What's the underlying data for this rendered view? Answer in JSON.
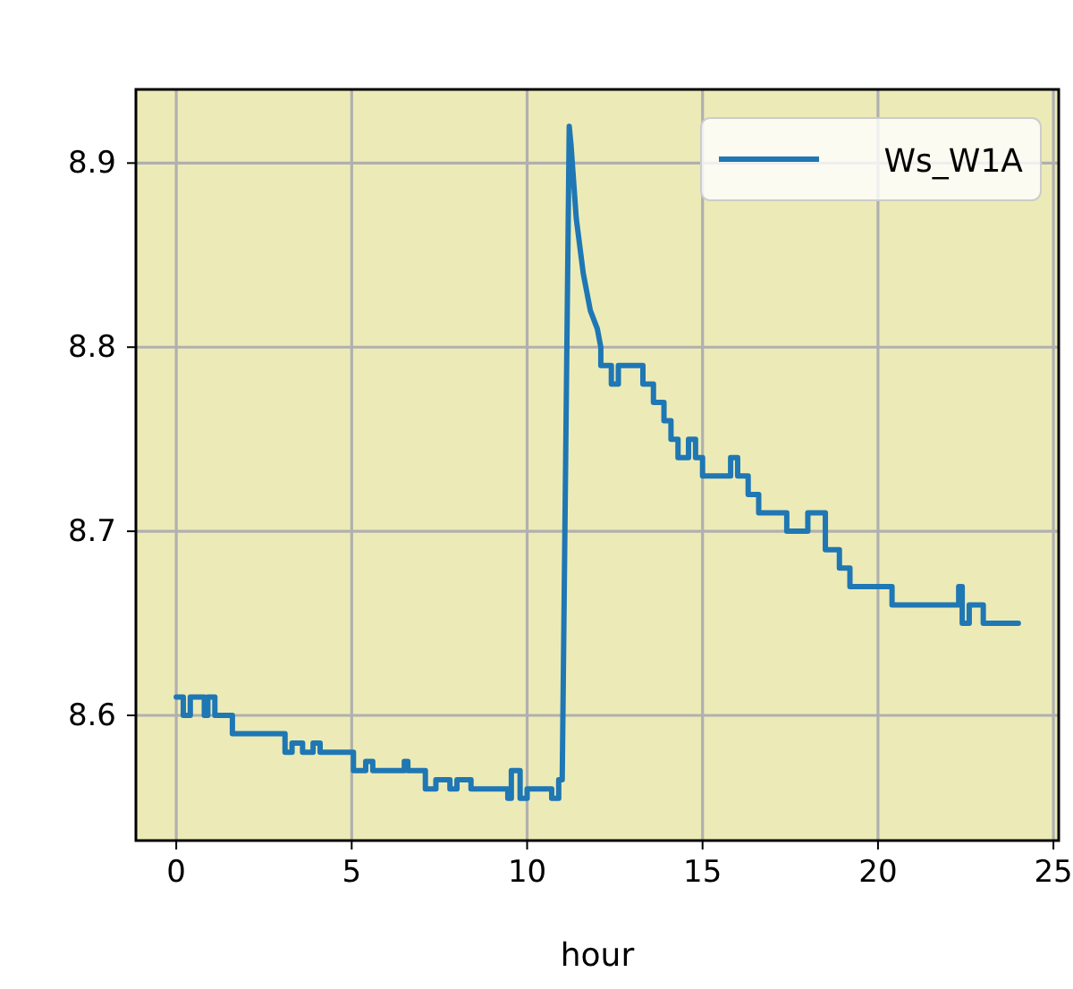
{
  "chart_data": {
    "type": "line",
    "xlabel": "hour",
    "xlim": [
      -1.15,
      25.15
    ],
    "xticks": [
      0,
      5,
      10,
      15,
      20,
      25
    ],
    "ylim": [
      8.532,
      8.94
    ],
    "yticks": [
      8.6,
      8.7,
      8.8,
      8.9
    ],
    "grid": true,
    "legend": "top right",
    "marker": "none",
    "line_style": "solid",
    "series": [
      {
        "name": "Ws_W1A",
        "color": "#1f77b4",
        "x": [
          0,
          0.2,
          0.2,
          0.4,
          0.4,
          0.8,
          0.8,
          0.9,
          0.9,
          1.1,
          1.1,
          1.35,
          1.35,
          1.6,
          1.6,
          1.9,
          1.9,
          3.1,
          3.1,
          3.3,
          3.3,
          3.6,
          3.6,
          3.9,
          3.9,
          4.1,
          4.1,
          5.05,
          5.05,
          5.4,
          5.4,
          5.6,
          5.6,
          6.5,
          6.5,
          6.6,
          6.6,
          7.1,
          7.1,
          7.4,
          7.4,
          7.8,
          7.8,
          8.0,
          8.0,
          8.4,
          8.4,
          9.45,
          9.45,
          9.55,
          9.55,
          9.8,
          9.8,
          10.0,
          10.0,
          10.7,
          10.7,
          10.9,
          10.9,
          11.0,
          11.2,
          11.25,
          11.4,
          11.6,
          11.8,
          12.0,
          12.1,
          12.1,
          12.4,
          12.4,
          12.6,
          12.6,
          13.3,
          13.3,
          13.6,
          13.6,
          13.9,
          13.9,
          14.1,
          14.1,
          14.3,
          14.3,
          14.6,
          14.6,
          14.8,
          14.8,
          15.0,
          15.0,
          15.8,
          15.8,
          16.0,
          16.0,
          16.3,
          16.3,
          16.6,
          16.6,
          17.4,
          17.4,
          18.0,
          18.0,
          18.5,
          18.5,
          18.9,
          18.9,
          19.2,
          19.2,
          20.4,
          20.4,
          20.6,
          20.6,
          22.3,
          22.3,
          22.4,
          22.4,
          22.6,
          22.6,
          23.0,
          23.0,
          24.0
        ],
        "values": [
          8.61,
          8.61,
          8.6,
          8.6,
          8.61,
          8.61,
          8.6,
          8.6,
          8.61,
          8.61,
          8.6,
          8.6,
          8.6,
          8.6,
          8.59,
          8.59,
          8.59,
          8.59,
          8.58,
          8.58,
          8.585,
          8.585,
          8.58,
          8.58,
          8.585,
          8.585,
          8.58,
          8.58,
          8.57,
          8.57,
          8.575,
          8.575,
          8.57,
          8.57,
          8.575,
          8.575,
          8.57,
          8.57,
          8.56,
          8.56,
          8.565,
          8.565,
          8.56,
          8.56,
          8.565,
          8.565,
          8.56,
          8.56,
          8.555,
          8.555,
          8.57,
          8.57,
          8.555,
          8.555,
          8.56,
          8.56,
          8.555,
          8.555,
          8.565,
          8.565,
          8.92,
          8.91,
          8.87,
          8.84,
          8.82,
          8.81,
          8.8,
          8.79,
          8.79,
          8.78,
          8.78,
          8.79,
          8.79,
          8.78,
          8.78,
          8.77,
          8.77,
          8.76,
          8.76,
          8.75,
          8.75,
          8.74,
          8.74,
          8.75,
          8.75,
          8.74,
          8.74,
          8.73,
          8.73,
          8.74,
          8.74,
          8.73,
          8.73,
          8.72,
          8.72,
          8.71,
          8.71,
          8.7,
          8.7,
          8.71,
          8.71,
          8.69,
          8.69,
          8.68,
          8.68,
          8.67,
          8.67,
          8.66,
          8.66,
          8.66,
          8.66,
          8.67,
          8.67,
          8.65,
          8.65,
          8.66,
          8.66,
          8.65,
          8.65
        ]
      }
    ]
  }
}
